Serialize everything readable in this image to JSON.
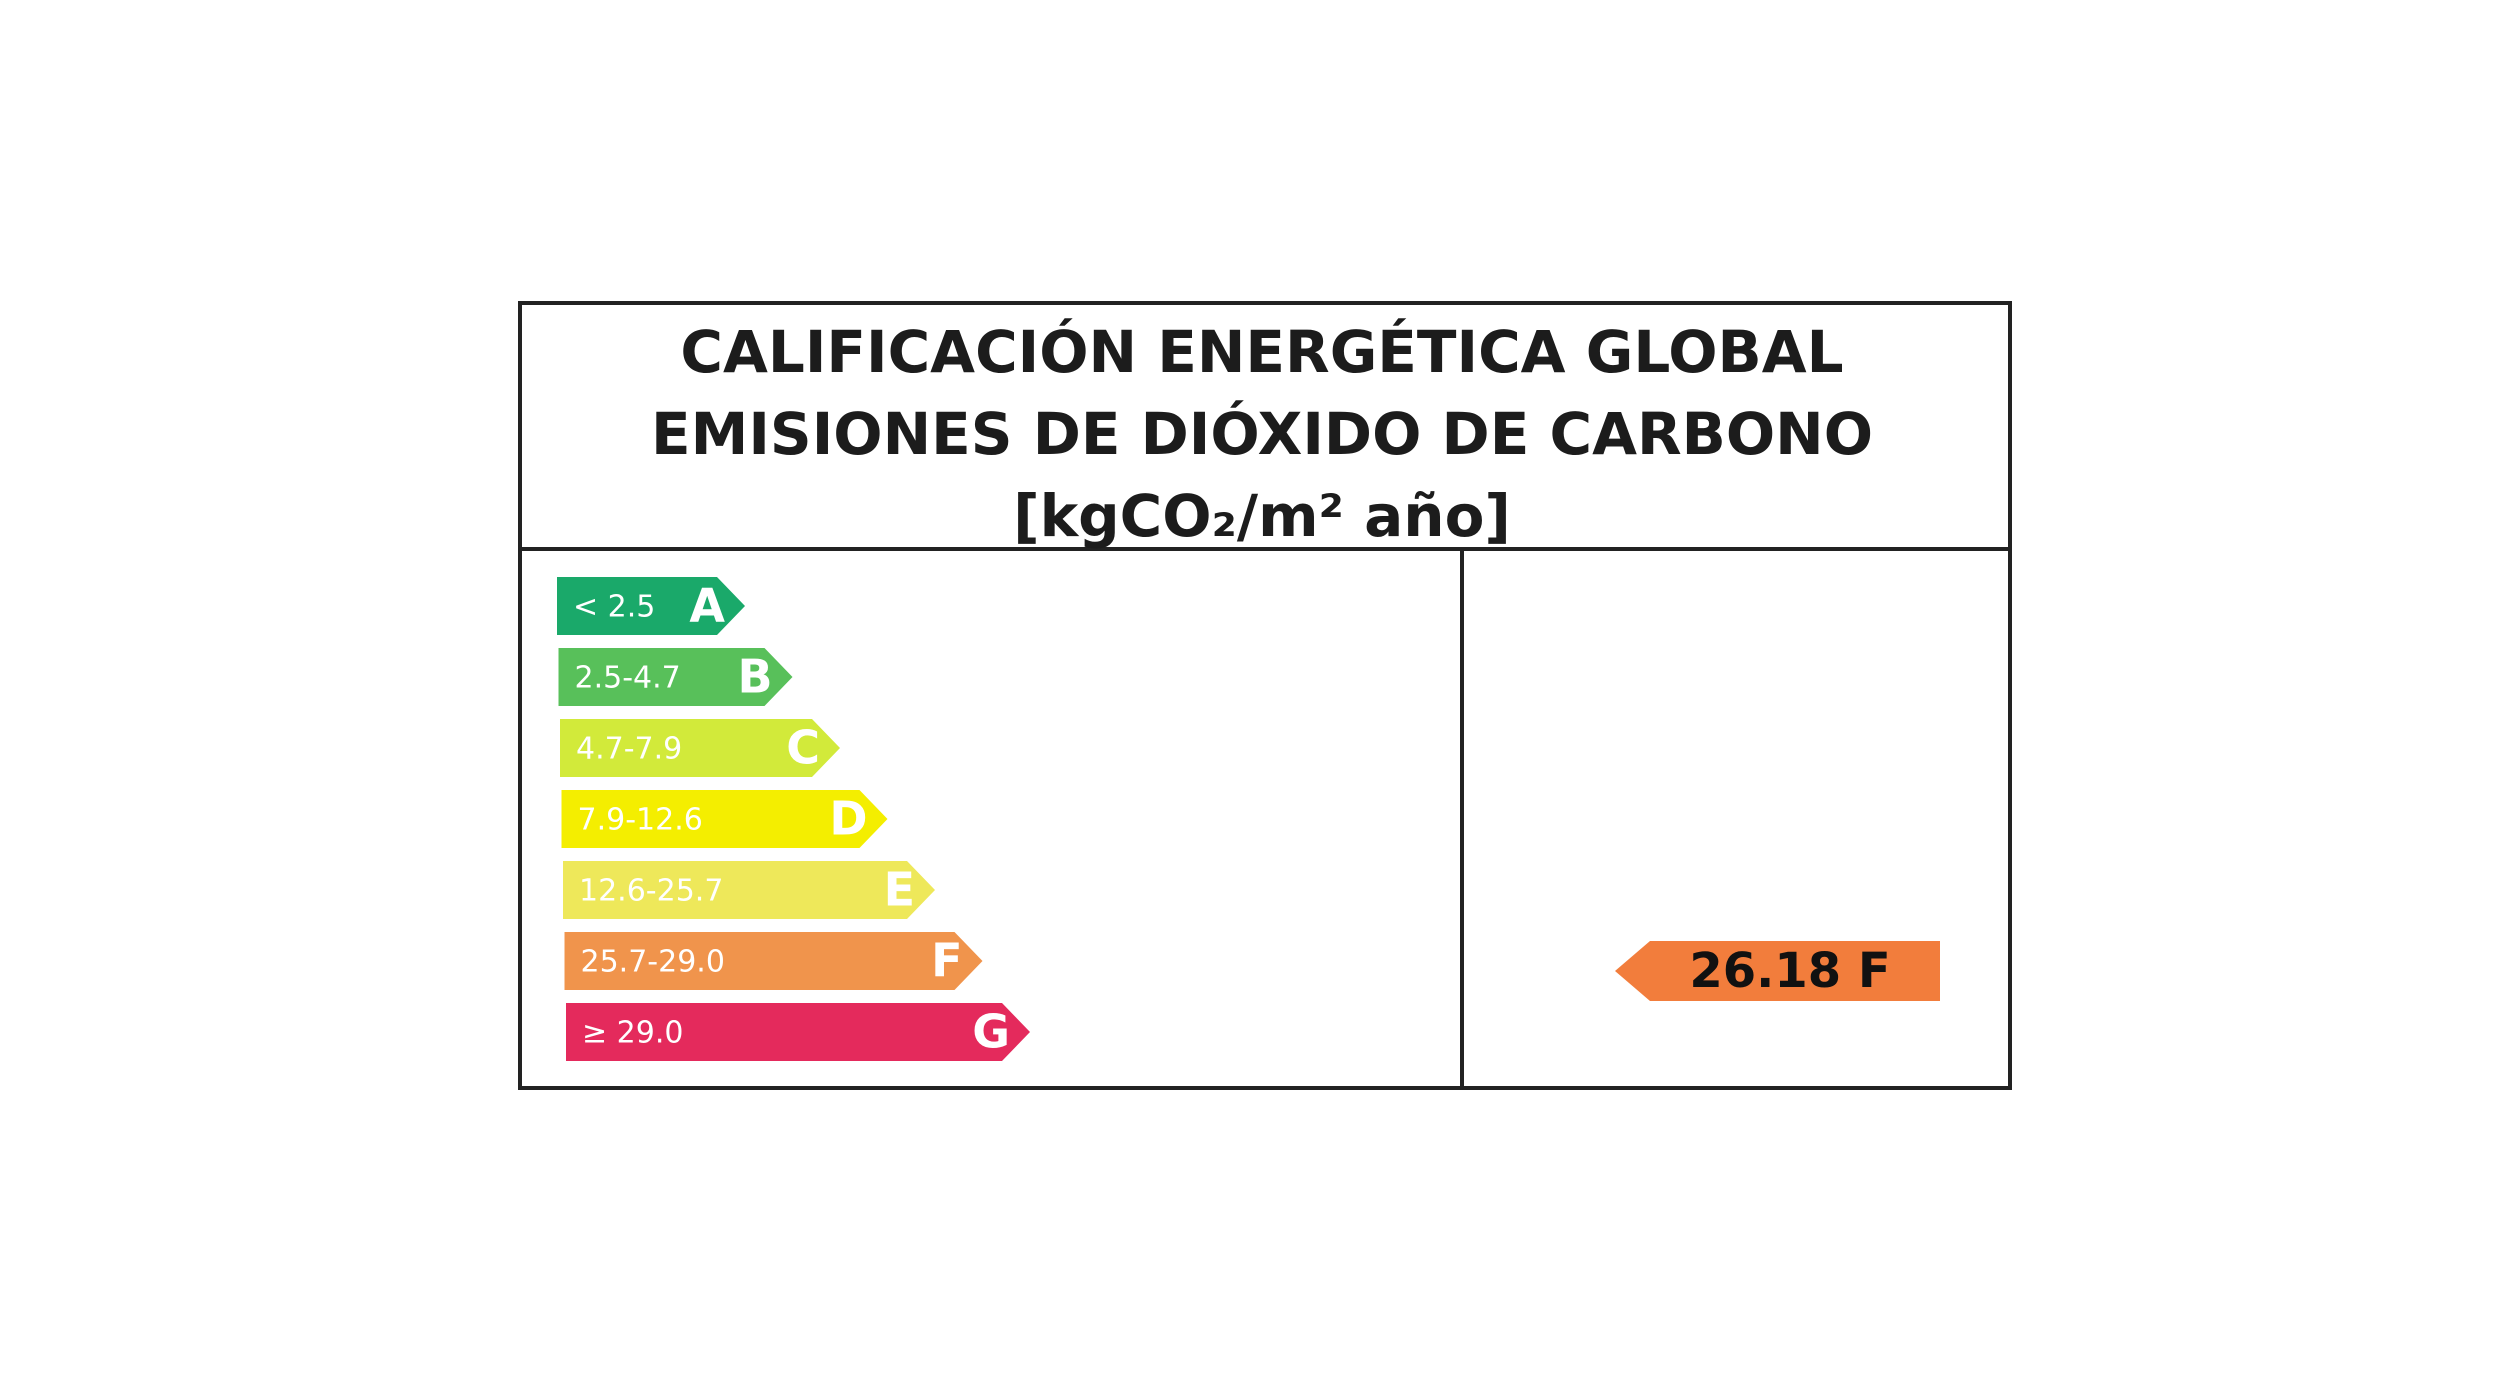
{
  "header": {
    "lines": [
      "CALIFICACIÓN ENERGÉTICA GLOBAL",
      "EMISIONES DE DIÓXIDO DE CARBONO",
      "[kgCO₂/m² año]"
    ]
  },
  "scale": [
    {
      "range": "< 2.5",
      "letter": "A",
      "color": "#1aa96a"
    },
    {
      "range": "2.5-4.7",
      "letter": "B",
      "color": "#58c05a"
    },
    {
      "range": "4.7-7.9",
      "letter": "C",
      "color": "#d2ea3a"
    },
    {
      "range": "7.9-12.6",
      "letter": "D",
      "color": "#f4ee00"
    },
    {
      "range": "12.6-25.7",
      "letter": "E",
      "color": "#eee85a"
    },
    {
      "range": "25.7-29.0",
      "letter": "F",
      "color": "#f0944c"
    },
    {
      "range": "≥ 29.0",
      "letter": "G",
      "color": "#e42a5c"
    }
  ],
  "result": {
    "label": "26.18 F",
    "color": "#f27d3c"
  }
}
